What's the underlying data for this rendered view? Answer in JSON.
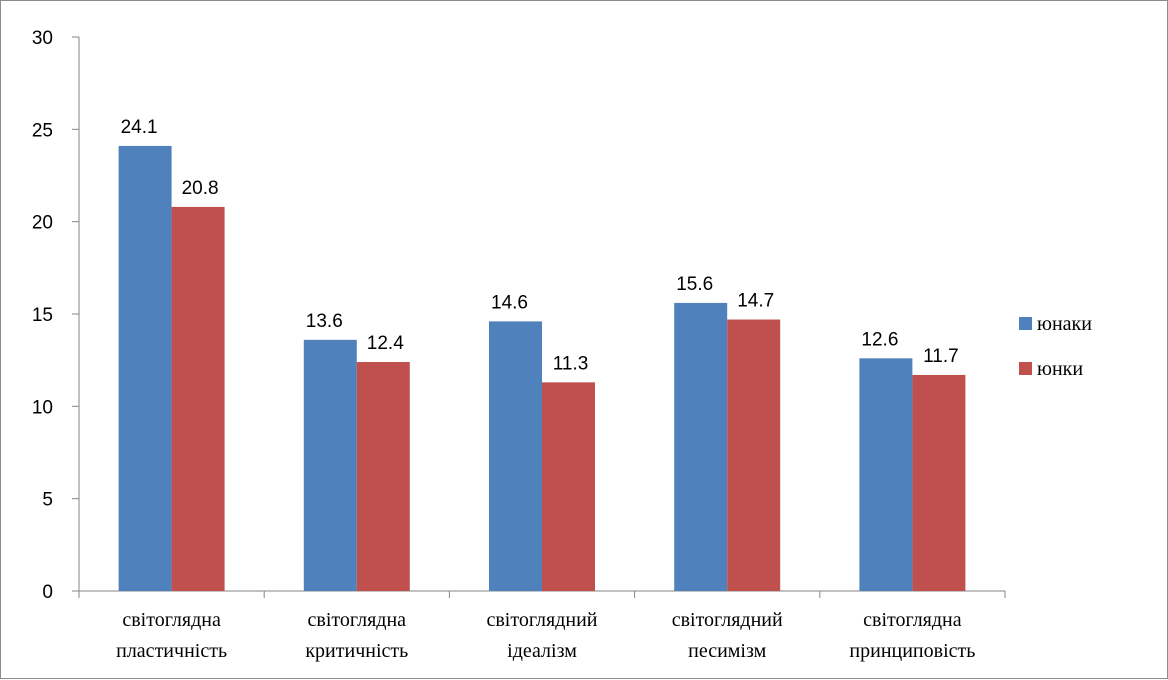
{
  "chart_data": {
    "type": "bar",
    "categories": [
      [
        "світоглядна",
        "пластичність"
      ],
      [
        "світоглядна",
        "критичність"
      ],
      [
        "світоглядний",
        "ідеалізм"
      ],
      [
        "світоглядний",
        "песимізм"
      ],
      [
        "світоглядна",
        "принциповість"
      ]
    ],
    "series": [
      {
        "name": "юнаки",
        "color": "#4f81bd",
        "values": [
          24.1,
          13.6,
          14.6,
          15.6,
          12.6
        ]
      },
      {
        "name": "юнки",
        "color": "#c0504d",
        "values": [
          20.8,
          12.4,
          11.3,
          14.7,
          11.7
        ]
      }
    ],
    "ylim": [
      0,
      30
    ],
    "yticks": [
      0,
      5,
      10,
      15,
      20,
      25,
      30
    ],
    "legend_position": "right",
    "grid": false
  }
}
